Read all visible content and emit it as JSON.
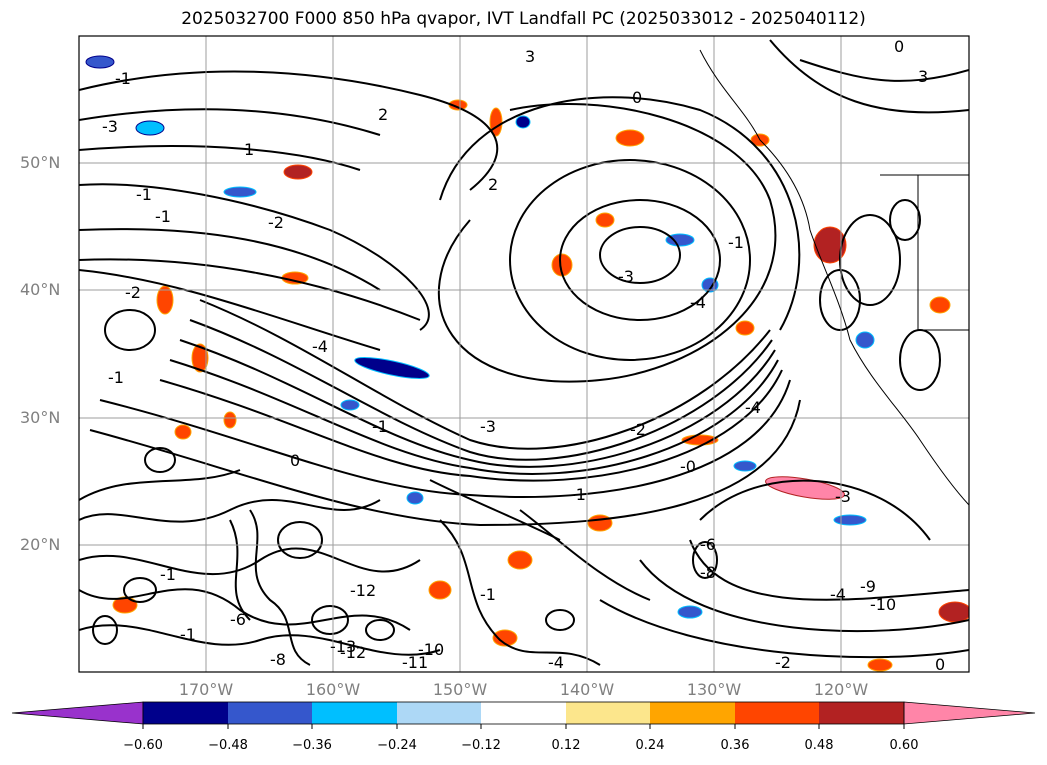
{
  "title": "2025032700 F000 850 hPa qvapor, IVT Landfall PC (2025033012 - 2025040112)",
  "map": {
    "lat_labels": [
      "50°N",
      "40°N",
      "30°N",
      "20°N"
    ],
    "lon_labels": [
      "170°W",
      "160°W",
      "150°W",
      "140°W",
      "130°W",
      "120°W"
    ],
    "contour_labels": [
      "-1",
      "2",
      "0",
      "3",
      "-3",
      "1",
      "-1",
      "-2",
      "-1",
      "3",
      "0",
      "2",
      "-1",
      "-3",
      "-4",
      "-4",
      "-3",
      "-4",
      "-2",
      "-0",
      "-1",
      "0",
      "-3",
      "-6",
      "-8",
      "-9",
      "-4",
      "-10",
      "-12",
      "-13",
      "-12",
      "-11",
      "-10",
      "-1",
      "-1",
      "0",
      "-1",
      "-2",
      "-4",
      "-2",
      "-1",
      "-6",
      "-8",
      "-1"
    ]
  },
  "colorbar": {
    "ticks": [
      "−0.60",
      "−0.48",
      "−0.36",
      "−0.24",
      "−0.12",
      "0.12",
      "0.24",
      "0.36",
      "0.48",
      "0.60"
    ],
    "colors": [
      "#9932cc",
      "#00008b",
      "#3557cc",
      "#00bfff",
      "#add8f6",
      "#ffffff",
      "#fce68c",
      "#ffa500",
      "#ff4500",
      "#b22222",
      "#ff85a8"
    ]
  }
}
